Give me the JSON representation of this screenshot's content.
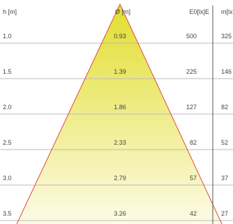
{
  "chart_data": {
    "type": "table",
    "headers": {
      "height": "h [m]",
      "diameter": "Ø [m]",
      "illuminance": "E0[lx]E",
      "mean_illuminance": "m[lx"
    },
    "rows": [
      {
        "h": "1.0",
        "d": "0.93",
        "e": "500",
        "m": "325"
      },
      {
        "h": "1.5",
        "d": "1.39",
        "e": "225",
        "m": "146"
      },
      {
        "h": "2.0",
        "d": "1.86",
        "e": "127",
        "m": "82"
      },
      {
        "h": "2.5",
        "d": "2.33",
        "e": "82",
        "m": "52"
      },
      {
        "h": "3.0",
        "d": "2.79",
        "e": "57",
        "m": "37"
      },
      {
        "h": "3.5",
        "d": "3.26",
        "e": "42",
        "m": "27"
      }
    ],
    "cone_color_top": "#e2de2e",
    "cone_color_bottom": "#fcfbe6",
    "cone_edge_color": "#e04a3c",
    "grid_color": "#bbbbbb"
  }
}
